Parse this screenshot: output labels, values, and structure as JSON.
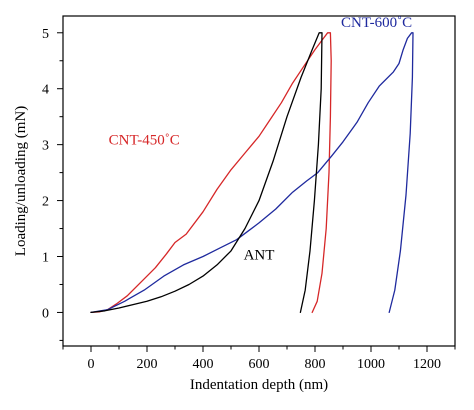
{
  "chart_data": {
    "type": "line",
    "title": "",
    "xlabel": "Indentation depth (nm)",
    "ylabel": "Loading/unloading (mN)",
    "xlim": [
      -100,
      1300
    ],
    "ylim": [
      -0.6,
      5.3
    ],
    "x_ticks": [
      0,
      200,
      400,
      600,
      800,
      1000,
      1200
    ],
    "y_ticks": [
      0,
      1,
      2,
      3,
      4,
      5
    ],
    "grid": false,
    "legend": "none (series labeled inline)",
    "series": [
      {
        "name": "CNT-450˚C",
        "color": "#d62728",
        "points": [
          [
            0,
            0.0
          ],
          [
            30,
            0.01
          ],
          [
            60,
            0.05
          ],
          [
            90,
            0.15
          ],
          [
            130,
            0.3
          ],
          [
            180,
            0.55
          ],
          [
            230,
            0.8
          ],
          [
            270,
            1.05
          ],
          [
            300,
            1.25
          ],
          [
            340,
            1.4
          ],
          [
            400,
            1.8
          ],
          [
            450,
            2.2
          ],
          [
            500,
            2.55
          ],
          [
            550,
            2.85
          ],
          [
            600,
            3.15
          ],
          [
            640,
            3.45
          ],
          [
            680,
            3.75
          ],
          [
            720,
            4.1
          ],
          [
            760,
            4.4
          ],
          [
            800,
            4.7
          ],
          [
            830,
            4.9
          ],
          [
            845,
            5.0
          ],
          [
            855,
            5.0
          ],
          [
            858,
            4.5
          ],
          [
            855,
            3.5
          ],
          [
            850,
            2.5
          ],
          [
            840,
            1.5
          ],
          [
            825,
            0.7
          ],
          [
            808,
            0.2
          ],
          [
            790,
            0.0
          ]
        ]
      },
      {
        "name": "CNT-600˚C",
        "color": "#1f2a9e",
        "points": [
          [
            0,
            0.0
          ],
          [
            60,
            0.05
          ],
          [
            120,
            0.2
          ],
          [
            190,
            0.4
          ],
          [
            260,
            0.65
          ],
          [
            330,
            0.85
          ],
          [
            400,
            1.0
          ],
          [
            460,
            1.15
          ],
          [
            520,
            1.3
          ],
          [
            560,
            1.45
          ],
          [
            600,
            1.6
          ],
          [
            660,
            1.85
          ],
          [
            720,
            2.15
          ],
          [
            770,
            2.35
          ],
          [
            810,
            2.5
          ],
          [
            860,
            2.8
          ],
          [
            900,
            3.05
          ],
          [
            950,
            3.4
          ],
          [
            990,
            3.75
          ],
          [
            1030,
            4.05
          ],
          [
            1080,
            4.3
          ],
          [
            1100,
            4.45
          ],
          [
            1115,
            4.7
          ],
          [
            1130,
            4.9
          ],
          [
            1145,
            5.0
          ],
          [
            1150,
            5.0
          ],
          [
            1148,
            4.2
          ],
          [
            1140,
            3.2
          ],
          [
            1125,
            2.1
          ],
          [
            1105,
            1.1
          ],
          [
            1085,
            0.4
          ],
          [
            1065,
            0.0
          ]
        ]
      },
      {
        "name": "ANT",
        "color": "#000000",
        "points": [
          [
            0,
            0.0
          ],
          [
            50,
            0.03
          ],
          [
            100,
            0.08
          ],
          [
            150,
            0.14
          ],
          [
            200,
            0.2
          ],
          [
            250,
            0.28
          ],
          [
            300,
            0.38
          ],
          [
            350,
            0.5
          ],
          [
            400,
            0.65
          ],
          [
            450,
            0.85
          ],
          [
            500,
            1.1
          ],
          [
            550,
            1.5
          ],
          [
            600,
            2.0
          ],
          [
            650,
            2.7
          ],
          [
            700,
            3.5
          ],
          [
            750,
            4.2
          ],
          [
            790,
            4.7
          ],
          [
            815,
            5.0
          ],
          [
            825,
            5.0
          ],
          [
            822,
            4.0
          ],
          [
            812,
            3.0
          ],
          [
            798,
            2.0
          ],
          [
            782,
            1.1
          ],
          [
            765,
            0.4
          ],
          [
            748,
            0.0
          ]
        ]
      }
    ],
    "annotations": [
      {
        "text": "CNT-450˚C",
        "series": "CNT-450˚C",
        "x": 190,
        "y": 3.0
      },
      {
        "text": "CNT-600˚C",
        "series": "CNT-600˚C",
        "x": 1020,
        "y": 5.1
      },
      {
        "text": "ANT",
        "series": "ANT",
        "x": 600,
        "y": 0.95
      }
    ]
  }
}
